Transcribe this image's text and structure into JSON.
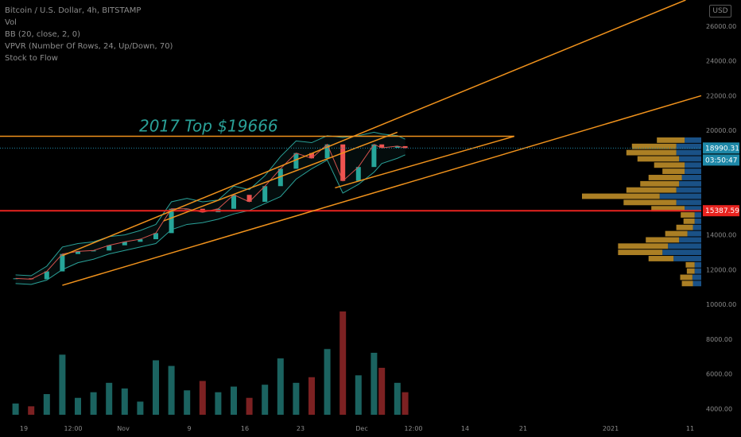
{
  "chart_data": {
    "type": "candlestick",
    "title": "Bitcoin / U.S. Dollar, 4h, BITSTAMP",
    "indicators": [
      "Vol",
      "BB (20, close, 2, 0)",
      "VPVR (Number Of Rows, 24, Up/Down, 70)",
      "Stock to Flow"
    ],
    "currency": "USD",
    "annotation": "2017 Top $19666",
    "price_ticks": [
      "26000.00",
      "24000.00",
      "22000.00",
      "20000.00",
      "14000.00",
      "12000.00",
      "10000.00",
      "8000.00",
      "6000.00",
      "4000.00"
    ],
    "price_labels": [
      {
        "label": "18990.31",
        "value": 18990.31,
        "color": "#1e88a8"
      },
      {
        "label": "03:50:47",
        "value": 18300,
        "color": "#1e88a8"
      },
      {
        "label": "15387.59",
        "value": 15387.59,
        "color": "#e8231f"
      }
    ],
    "x_ticks": [
      "19",
      "12:00",
      "Nov",
      "9",
      "16",
      "23",
      "Dec",
      "12:00",
      "14",
      "21",
      "2021",
      "11"
    ],
    "ylim": [
      3750,
      27500
    ],
    "horizontal_levels": [
      {
        "name": "2017 Top",
        "value": 19666,
        "color": "#f0921c"
      },
      {
        "name": "support",
        "value": 15387.59,
        "color": "#e8231f"
      }
    ],
    "trend_lines": [
      {
        "from": [
          "2020-10-22",
          12800
        ],
        "to": [
          "2021-01-10",
          27500
        ],
        "color": "#f0921c"
      },
      {
        "from": [
          "2020-10-22",
          11100
        ],
        "to": [
          "2021-01-12",
          22000
        ],
        "color": "#f0921c"
      },
      {
        "from": [
          "2020-11-04",
          14800
        ],
        "to": [
          "2020-12-04",
          19900
        ],
        "color": "#f0921c"
      },
      {
        "from": [
          "2020-11-26",
          16700
        ],
        "to": [
          "2020-12-19",
          19666
        ],
        "color": "#f0921c"
      }
    ],
    "price_series": {
      "dates": [
        "2020-10-16",
        "2020-10-18",
        "2020-10-20",
        "2020-10-22",
        "2020-10-24",
        "2020-10-26",
        "2020-10-28",
        "2020-10-30",
        "2020-11-01",
        "2020-11-03",
        "2020-11-05",
        "2020-11-07",
        "2020-11-09",
        "2020-11-11",
        "2020-11-13",
        "2020-11-15",
        "2020-11-17",
        "2020-11-19",
        "2020-11-21",
        "2020-11-23",
        "2020-11-25",
        "2020-11-27",
        "2020-11-29",
        "2020-12-01",
        "2020-12-02",
        "2020-12-04",
        "2020-12-05"
      ],
      "close": [
        11500,
        11450,
        11900,
        12900,
        13050,
        13100,
        13400,
        13600,
        13750,
        14100,
        15500,
        15500,
        15300,
        15500,
        16300,
        15900,
        16800,
        17800,
        18700,
        18400,
        19200,
        17100,
        17900,
        19200,
        19000,
        19100,
        18990
      ],
      "bb_upper": [
        11700,
        11650,
        12200,
        13300,
        13500,
        13600,
        13900,
        14000,
        14250,
        14600,
        15900,
        16100,
        15900,
        16000,
        16800,
        16600,
        17400,
        18500,
        19400,
        19300,
        19700,
        19600,
        19700,
        19900,
        19800,
        19700,
        19500
      ],
      "bb_lower": [
        11200,
        11150,
        11400,
        12000,
        12400,
        12600,
        12900,
        13100,
        13300,
        13500,
        14300,
        14600,
        14700,
        14900,
        15200,
        15400,
        15800,
        16200,
        17200,
        17800,
        18300,
        16400,
        16900,
        17600,
        18100,
        18400,
        18600
      ]
    },
    "volume": {
      "ylabel": "Vol",
      "dates": [
        "2020-10-16",
        "2020-10-18",
        "2020-10-20",
        "2020-10-22",
        "2020-10-24",
        "2020-10-26",
        "2020-10-28",
        "2020-10-30",
        "2020-11-01",
        "2020-11-03",
        "2020-11-05",
        "2020-11-07",
        "2020-11-09",
        "2020-11-11",
        "2020-11-13",
        "2020-11-15",
        "2020-11-17",
        "2020-11-19",
        "2020-11-21",
        "2020-11-23",
        "2020-11-25",
        "2020-11-27",
        "2020-11-29",
        "2020-12-01",
        "2020-12-02",
        "2020-12-04",
        "2020-12-05"
      ],
      "values": [
        600,
        450,
        1100,
        3200,
        900,
        1200,
        1700,
        1400,
        700,
        2900,
        2600,
        1300,
        1800,
        1200,
        1500,
        900,
        1600,
        3000,
        1700,
        2000,
        3500,
        5500,
        2100,
        3300,
        2500,
        1700,
        1200
      ]
    },
    "volume_profile": {
      "price_min": 11000,
      "price_max": 19600,
      "rows": 24,
      "up": [
        20,
        22,
        14,
        16,
        45,
        80,
        90,
        60,
        40,
        30,
        20,
        25,
        60,
        95,
        140,
        90,
        70,
        60,
        40,
        55,
        75,
        90,
        80,
        50
      ],
      "down": [
        15,
        16,
        12,
        12,
        50,
        70,
        60,
        40,
        25,
        15,
        12,
        12,
        30,
        45,
        75,
        45,
        40,
        35,
        30,
        30,
        40,
        45,
        45,
        30
      ]
    }
  }
}
